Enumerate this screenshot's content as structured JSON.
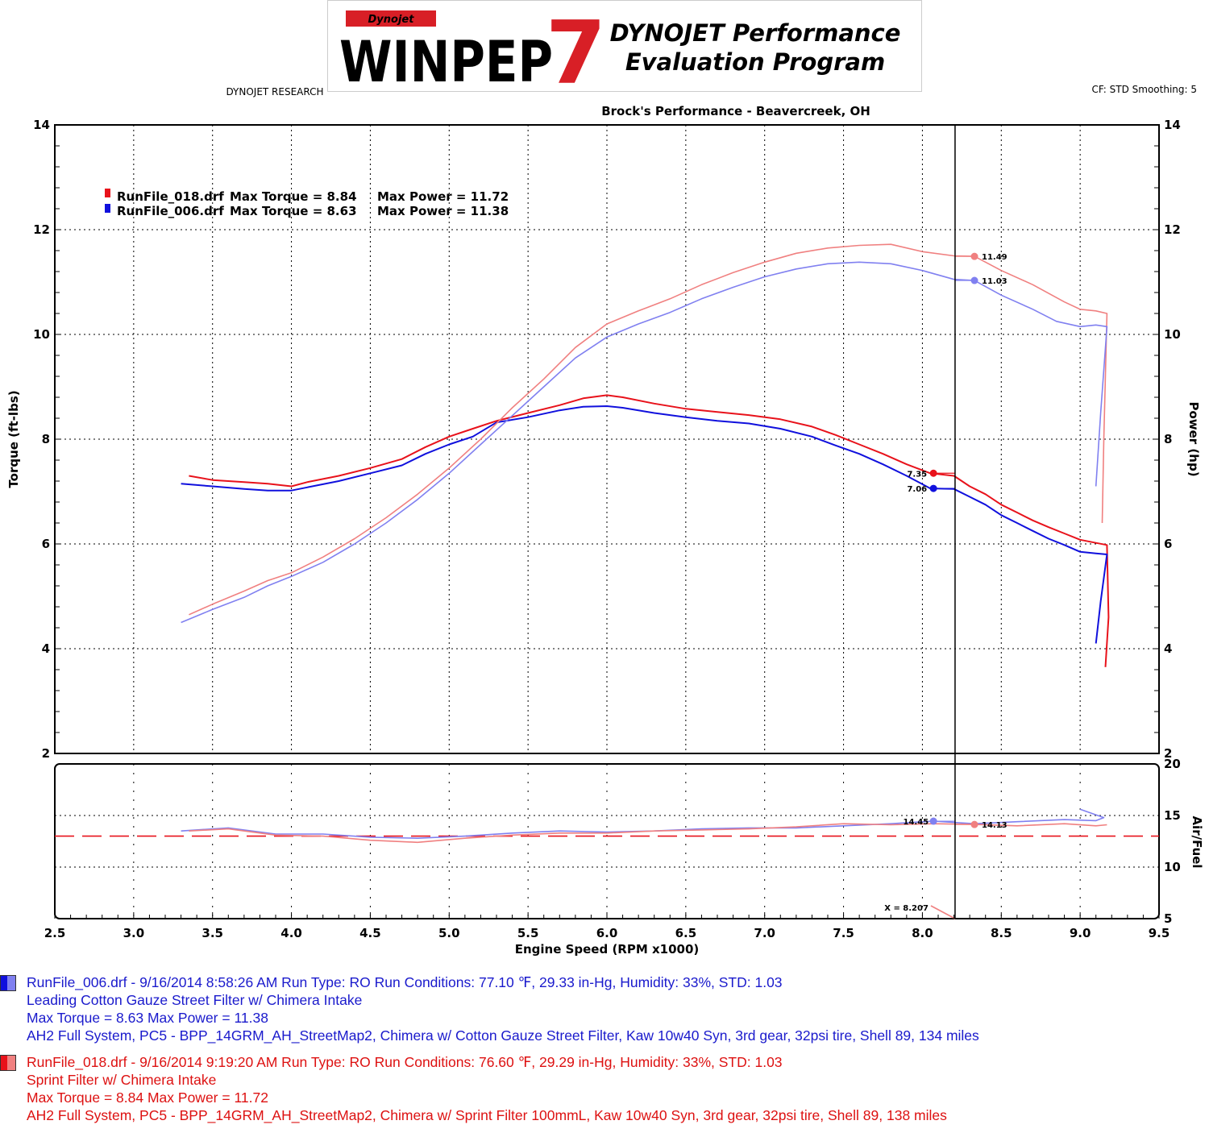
{
  "header": {
    "logo_small": "Dynojet",
    "logo_main": "WINPEP",
    "logo_number": "7",
    "logo_line1": "DYNOJET Performance",
    "logo_line2": "Evaluation Program",
    "logo_sub": "DYNOJET RESEARCH",
    "cf_info": "CF: STD  Smoothing: 5",
    "shop_title": "Brock's Performance - Beavercreek, OH"
  },
  "colors": {
    "red_dark": "#e8121b",
    "red_light": "#f08080",
    "blue_dark": "#1010dd",
    "blue_light": "#8080f0",
    "footer_blue": "#1a1acc",
    "footer_red": "#dd1111"
  },
  "chart_data": [
    {
      "type": "line",
      "title": "Brock's Performance - Beavercreek, OH",
      "xlabel": "Engine Speed (RPM x1000)",
      "ylabel": "Torque (ft-lbs)",
      "y2label": "Power (hp)",
      "xlim": [
        2.5,
        9.5
      ],
      "ylim": [
        2,
        14
      ],
      "y2lim": [
        2,
        14
      ],
      "x_ticks": [
        "2.5",
        "3.0",
        "3.5",
        "4.0",
        "4.5",
        "5.0",
        "5.5",
        "6.0",
        "6.5",
        "7.0",
        "7.5",
        "8.0",
        "8.5",
        "9.0",
        "9.5"
      ],
      "y_ticks": [
        "2",
        "4",
        "6",
        "8",
        "10",
        "12",
        "14"
      ],
      "grid": true,
      "cursor_x": 8.207,
      "legend": [
        {
          "file": "RunFile_018.drf",
          "max_torque": "Max Torque = 8.84",
          "max_power": "Max Power = 11.72"
        },
        {
          "file": "RunFile_006.drf",
          "max_torque": "Max Torque = 8.63",
          "max_power": "Max Power = 11.38"
        }
      ],
      "legend_placement": "top-left",
      "series": [
        {
          "name": "RunFile_018.drf",
          "measure": "torque",
          "color": "#e8121b",
          "x": [
            3.35,
            3.5,
            3.7,
            3.85,
            4.0,
            4.1,
            4.3,
            4.5,
            4.7,
            4.85,
            5.0,
            5.15,
            5.3,
            5.5,
            5.7,
            5.85,
            6.0,
            6.1,
            6.3,
            6.5,
            6.7,
            6.9,
            7.1,
            7.3,
            7.45,
            7.6,
            7.75,
            7.9,
            8.05,
            8.2,
            8.3,
            8.4,
            8.5,
            8.6,
            8.7,
            8.8,
            8.9,
            9.0,
            9.1,
            9.17,
            9.18,
            9.16
          ],
          "y": [
            7.3,
            7.22,
            7.18,
            7.15,
            7.1,
            7.18,
            7.3,
            7.45,
            7.62,
            7.85,
            8.05,
            8.2,
            8.35,
            8.5,
            8.65,
            8.78,
            8.84,
            8.8,
            8.68,
            8.58,
            8.52,
            8.46,
            8.38,
            8.24,
            8.08,
            7.9,
            7.72,
            7.52,
            7.35,
            7.3,
            7.1,
            6.95,
            6.75,
            6.6,
            6.45,
            6.32,
            6.2,
            6.08,
            6.02,
            5.98,
            4.6,
            3.65
          ]
        },
        {
          "name": "RunFile_006.drf",
          "measure": "torque",
          "color": "#1010dd",
          "x": [
            3.3,
            3.5,
            3.7,
            3.85,
            4.0,
            4.1,
            4.3,
            4.5,
            4.7,
            4.85,
            5.0,
            5.15,
            5.3,
            5.5,
            5.7,
            5.85,
            6.0,
            6.1,
            6.3,
            6.5,
            6.7,
            6.9,
            7.1,
            7.3,
            7.45,
            7.6,
            7.75,
            7.9,
            8.05,
            8.2,
            8.3,
            8.4,
            8.5,
            8.6,
            8.7,
            8.8,
            8.9,
            9.0,
            9.1,
            9.17,
            9.13,
            9.1
          ],
          "y": [
            7.15,
            7.1,
            7.05,
            7.02,
            7.02,
            7.08,
            7.2,
            7.35,
            7.5,
            7.72,
            7.9,
            8.05,
            8.32,
            8.42,
            8.55,
            8.62,
            8.63,
            8.6,
            8.5,
            8.42,
            8.35,
            8.3,
            8.2,
            8.05,
            7.88,
            7.72,
            7.52,
            7.3,
            7.06,
            7.05,
            6.9,
            6.75,
            6.55,
            6.4,
            6.25,
            6.1,
            5.98,
            5.85,
            5.82,
            5.8,
            4.9,
            4.1
          ]
        },
        {
          "name": "RunFile_018.drf",
          "measure": "power",
          "color": "#f08080",
          "x": [
            3.35,
            3.5,
            3.7,
            3.85,
            4.0,
            4.2,
            4.4,
            4.6,
            4.8,
            5.0,
            5.2,
            5.4,
            5.6,
            5.8,
            6.0,
            6.2,
            6.4,
            6.6,
            6.8,
            7.0,
            7.2,
            7.4,
            7.6,
            7.8,
            8.0,
            8.2,
            8.33,
            8.5,
            8.7,
            8.9,
            9.0,
            9.1,
            9.17,
            9.15,
            9.14
          ],
          "y": [
            4.65,
            4.85,
            5.1,
            5.3,
            5.45,
            5.75,
            6.1,
            6.5,
            6.95,
            7.45,
            8.0,
            8.6,
            9.15,
            9.75,
            10.2,
            10.45,
            10.68,
            10.95,
            11.18,
            11.38,
            11.55,
            11.65,
            11.7,
            11.72,
            11.58,
            11.5,
            11.49,
            11.22,
            10.95,
            10.62,
            10.48,
            10.45,
            10.4,
            8.0,
            6.4
          ]
        },
        {
          "name": "RunFile_006.drf",
          "measure": "power",
          "color": "#8080f0",
          "x": [
            3.3,
            3.5,
            3.7,
            3.85,
            4.0,
            4.2,
            4.4,
            4.6,
            4.8,
            5.0,
            5.2,
            5.4,
            5.6,
            5.8,
            6.0,
            6.2,
            6.4,
            6.6,
            6.8,
            7.0,
            7.2,
            7.4,
            7.6,
            7.8,
            8.0,
            8.2,
            8.33,
            8.5,
            8.7,
            8.85,
            9.0,
            9.1,
            9.17,
            9.13,
            9.1
          ],
          "y": [
            4.5,
            4.75,
            4.98,
            5.2,
            5.38,
            5.65,
            6.0,
            6.4,
            6.85,
            7.35,
            7.9,
            8.45,
            9.0,
            9.55,
            9.95,
            10.2,
            10.42,
            10.68,
            10.9,
            11.1,
            11.25,
            11.35,
            11.38,
            11.35,
            11.22,
            11.05,
            11.03,
            10.75,
            10.48,
            10.25,
            10.15,
            10.18,
            10.15,
            8.5,
            7.1
          ]
        }
      ],
      "markers": [
        {
          "series": "RunFile_018.drf torque",
          "x": 8.07,
          "value": "7.35",
          "color": "#e8121b"
        },
        {
          "series": "RunFile_006.drf torque",
          "x": 8.07,
          "value": "7.06",
          "color": "#1010dd"
        },
        {
          "series": "RunFile_018.drf power",
          "x": 8.33,
          "value": "11.49",
          "color": "#f08080"
        },
        {
          "series": "RunFile_006.drf power",
          "x": 8.33,
          "value": "11.03",
          "color": "#8080f0"
        }
      ]
    },
    {
      "type": "line",
      "ylabel": "Air/Fuel",
      "xlim": [
        2.5,
        9.5
      ],
      "ylim": [
        5,
        20
      ],
      "y_ticks": [
        "20",
        "15",
        "10",
        "5"
      ],
      "reference_line": 13.0,
      "cursor_label": "X = 8.207",
      "series": [
        {
          "name": "RunFile_006.drf",
          "color": "#8080f0",
          "x": [
            3.3,
            3.6,
            3.9,
            4.2,
            4.5,
            4.8,
            5.1,
            5.4,
            5.7,
            6.0,
            6.3,
            6.6,
            6.9,
            7.2,
            7.5,
            7.8,
            8.07,
            8.33,
            8.6,
            8.9,
            9.1,
            9.15,
            9.0
          ],
          "y": [
            13.5,
            13.8,
            13.2,
            13.2,
            12.9,
            12.8,
            13.0,
            13.3,
            13.5,
            13.4,
            13.5,
            13.7,
            13.8,
            13.8,
            14.0,
            14.2,
            14.45,
            14.2,
            14.4,
            14.6,
            14.5,
            14.8,
            15.6
          ]
        },
        {
          "name": "RunFile_018.drf",
          "color": "#f08080",
          "x": [
            3.35,
            3.6,
            3.9,
            4.2,
            4.5,
            4.8,
            5.1,
            5.4,
            5.7,
            6.0,
            6.3,
            6.6,
            6.9,
            7.2,
            7.5,
            7.8,
            8.07,
            8.33,
            8.6,
            8.9,
            9.1,
            9.17
          ],
          "y": [
            13.5,
            13.7,
            13.1,
            13.0,
            12.6,
            12.4,
            12.8,
            13.1,
            13.3,
            13.3,
            13.5,
            13.6,
            13.7,
            13.9,
            14.2,
            14.1,
            14.2,
            14.13,
            14.0,
            14.2,
            14.0,
            14.1
          ]
        }
      ],
      "markers": [
        {
          "x": 8.07,
          "value": "14.45",
          "color": "#8080f0"
        },
        {
          "x": 8.33,
          "value": "14.13",
          "color": "#f08080"
        }
      ]
    }
  ],
  "footer": {
    "runs": [
      {
        "color": "#1a1acc",
        "line1": "RunFile_006.drf - 9/16/2014 8:58:26 AM  Run Type: RO  Run Conditions: 77.10 ℉, 29.33 in-Hg,  Humidity:  33%, STD: 1.03",
        "line2": "Leading Cotton Gauze Street Filter w/ Chimera Intake",
        "line3": "Max Torque = 8.63  Max Power = 11.38",
        "line4": "AH2 Full System, PC5 - BPP_14GRM_AH_StreetMap2, Chimera w/ Cotton Gauze Street Filter, Kaw 10w40 Syn, 3rd gear, 32psi tire, Shell 89, 134 miles"
      },
      {
        "color": "#dd1111",
        "line1": "RunFile_018.drf - 9/16/2014 9:19:20 AM  Run Type: RO  Run Conditions: 76.60 ℉, 29.29 in-Hg,  Humidity:  33%, STD: 1.03",
        "line2": "Sprint Filter w/ Chimera Intake",
        "line3": "Max Torque = 8.84  Max Power = 11.72",
        "line4": "AH2 Full System, PC5 - BPP_14GRM_AH_StreetMap2, Chimera w/ Sprint Filter 100mmL, Kaw 10w40 Syn, 3rd gear, 32psi tire, Shell 89, 138 miles"
      }
    ]
  }
}
